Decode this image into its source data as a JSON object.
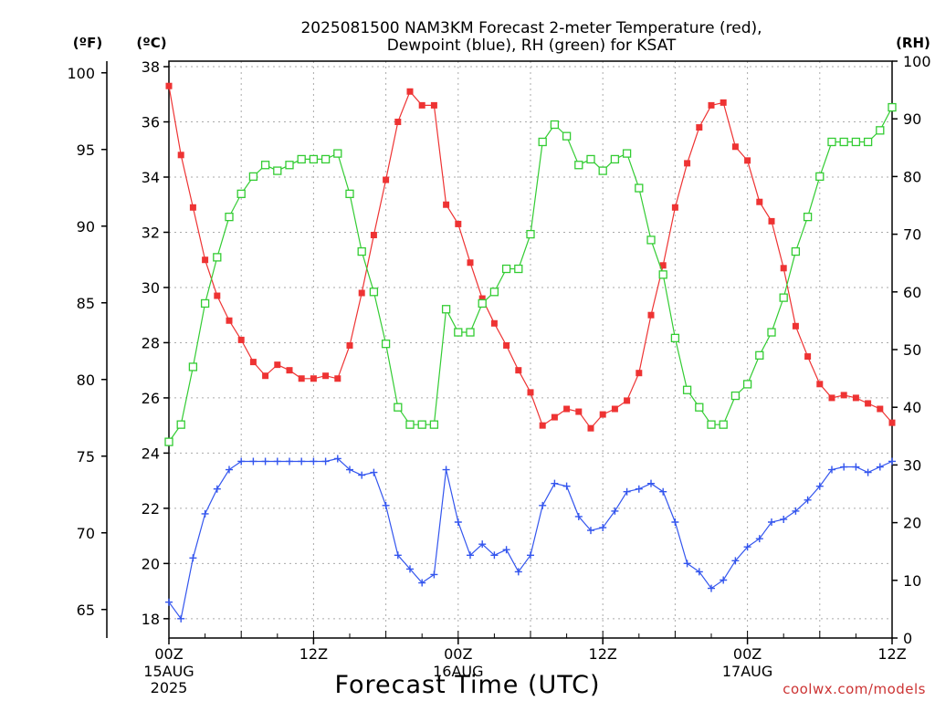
{
  "chart_data": {
    "type": "line",
    "title_line1": "2025081500 NAM3KM Forecast 2-meter Temperature (red),",
    "title_line2": "Dewpoint (blue), RH (green) for KSAT",
    "xlabel": "Forecast Time (UTC)",
    "units": {
      "fahrenheit": "(ºF)",
      "celsius": "(ºC)",
      "rh": "(RH)"
    },
    "credit": "coolwx.com/models",
    "x_hours_range": [
      0,
      60
    ],
    "x_ticks": [
      {
        "hour": 0,
        "label": "00Z",
        "date": "15AUG",
        "year": "2025"
      },
      {
        "hour": 12,
        "label": "12Z",
        "date": "",
        "year": ""
      },
      {
        "hour": 24,
        "label": "00Z",
        "date": "16AUG",
        "year": ""
      },
      {
        "hour": 36,
        "label": "12Z",
        "date": "",
        "year": ""
      },
      {
        "hour": 48,
        "label": "00Z",
        "date": "17AUG",
        "year": ""
      },
      {
        "hour": 60,
        "label": "12Z",
        "date": "",
        "year": ""
      }
    ],
    "y_celsius_range": [
      17.3,
      38.2
    ],
    "y_celsius_ticks": [
      18,
      20,
      22,
      24,
      26,
      28,
      30,
      32,
      34,
      36,
      38
    ],
    "y_fahrenheit_ticks": [
      65,
      70,
      75,
      80,
      85,
      90,
      95,
      100
    ],
    "y_rh_range": [
      0,
      100
    ],
    "y_rh_ticks": [
      0,
      10,
      20,
      30,
      40,
      50,
      60,
      70,
      80,
      90,
      100
    ],
    "grid": true,
    "series": [
      {
        "name": "2-meter Temperature",
        "color": "#ee3333",
        "marker": "filled-square",
        "axis": "celsius",
        "values": [
          37.3,
          34.8,
          32.9,
          31.0,
          29.7,
          28.8,
          28.1,
          27.3,
          26.8,
          27.2,
          27.0,
          26.7,
          26.7,
          26.8,
          26.7,
          27.9,
          29.8,
          31.9,
          33.9,
          36.0,
          37.1,
          36.6,
          36.6,
          33.0,
          32.3,
          30.9,
          29.6,
          28.7,
          27.9,
          27.0,
          26.2,
          25.0,
          25.3,
          25.6,
          25.5,
          24.9,
          25.4,
          25.6,
          25.9,
          26.9,
          29.0,
          30.8,
          32.9,
          34.5,
          35.8,
          36.6,
          36.7,
          35.1,
          34.6,
          33.1,
          32.4,
          30.7,
          28.6,
          27.5,
          26.5,
          26.0,
          26.1,
          26.0,
          25.8,
          25.6,
          25.1
        ]
      },
      {
        "name": "2-meter Dewpoint",
        "color": "#3355ee",
        "marker": "plus",
        "axis": "celsius",
        "values": [
          18.6,
          18.0,
          20.2,
          21.8,
          22.7,
          23.4,
          23.7,
          23.7,
          23.7,
          23.7,
          23.7,
          23.7,
          23.7,
          23.7,
          23.8,
          23.4,
          23.2,
          23.3,
          22.1,
          20.3,
          19.8,
          19.3,
          19.6,
          23.4,
          21.5,
          20.3,
          20.7,
          20.3,
          20.5,
          19.7,
          20.3,
          22.1,
          22.9,
          22.8,
          21.7,
          21.2,
          21.3,
          21.9,
          22.6,
          22.7,
          22.9,
          22.6,
          21.5,
          20.0,
          19.7,
          19.1,
          19.4,
          20.1,
          20.6,
          20.9,
          21.5,
          21.6,
          21.9,
          22.3,
          22.8,
          23.4,
          23.5,
          23.5,
          23.3,
          23.5,
          23.7
        ]
      },
      {
        "name": "Relative Humidity",
        "color": "#33cc33",
        "marker": "open-square",
        "axis": "rh",
        "values": [
          34,
          37,
          47,
          58,
          66,
          73,
          77,
          80,
          82,
          81,
          82,
          83,
          83,
          83,
          84,
          77,
          67,
          60,
          51,
          40,
          37,
          37,
          37,
          57,
          53,
          53,
          58,
          60,
          64,
          64,
          70,
          86,
          89,
          87,
          82,
          83,
          81,
          83,
          84,
          78,
          69,
          63,
          52,
          43,
          40,
          37,
          37,
          42,
          44,
          49,
          53,
          59,
          67,
          73,
          80,
          86,
          86,
          86,
          86,
          88,
          92
        ]
      }
    ]
  }
}
